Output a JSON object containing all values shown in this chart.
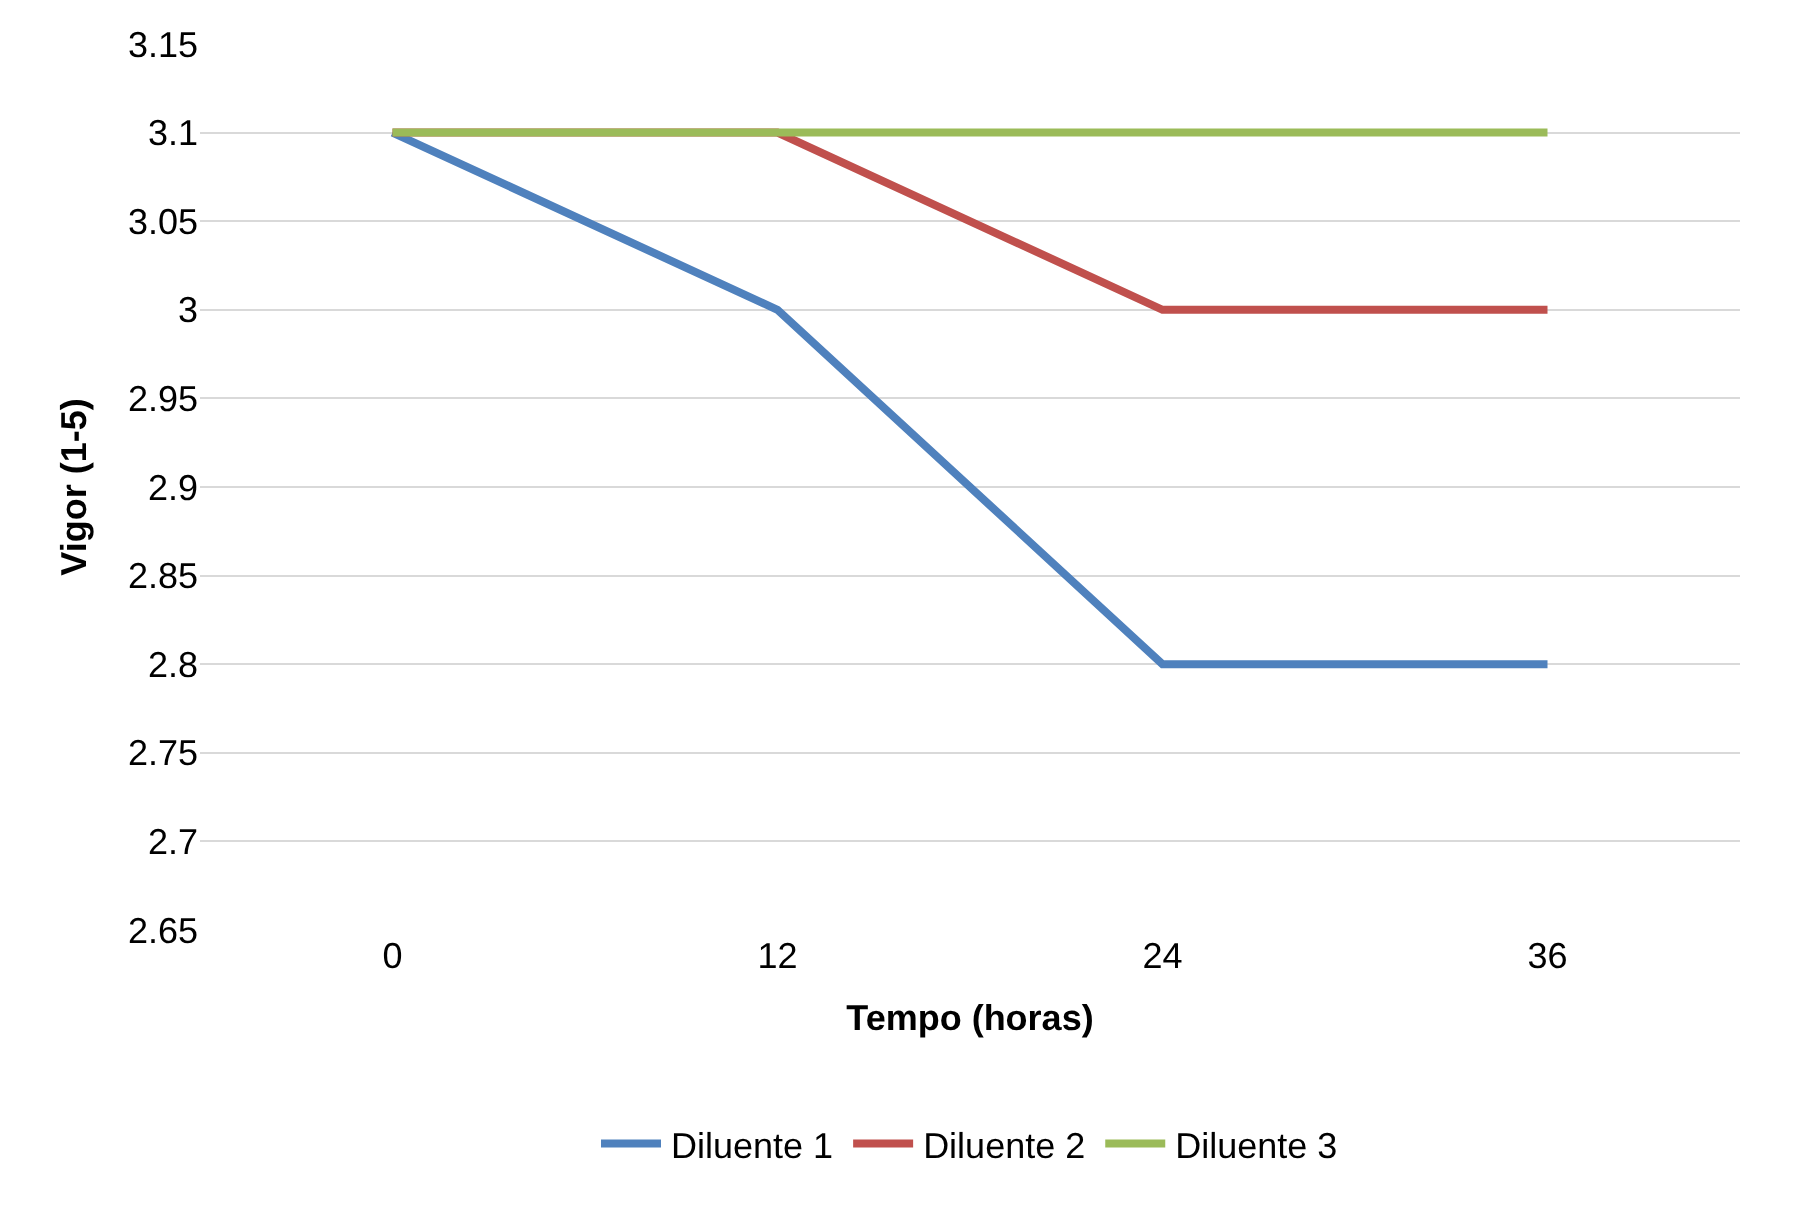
{
  "chart_data": {
    "type": "line",
    "xlabel": "Tempo (horas)",
    "ylabel": "Vigor (1-5)",
    "categories": [
      "0",
      "12",
      "24",
      "36"
    ],
    "series": [
      {
        "name": "Diluente 1",
        "color": "#4f81bd",
        "values": [
          3.1,
          3,
          2.8,
          2.8
        ]
      },
      {
        "name": "Diluente 2",
        "color": "#c0504d",
        "values": [
          3.1,
          3.1,
          3,
          3
        ]
      },
      {
        "name": "Diluente 3",
        "color": "#9bbb59",
        "values": [
          3.1,
          3.1,
          3.1,
          3.1
        ]
      }
    ],
    "ylim": [
      2.65,
      3.15
    ],
    "yticks": [
      2.65,
      2.7,
      2.75,
      2.8,
      2.85,
      2.9,
      2.95,
      3,
      3.05,
      3.1,
      3.15
    ],
    "grid": "y",
    "legend": "bottom",
    "marker": "none",
    "line_style": "solid"
  }
}
